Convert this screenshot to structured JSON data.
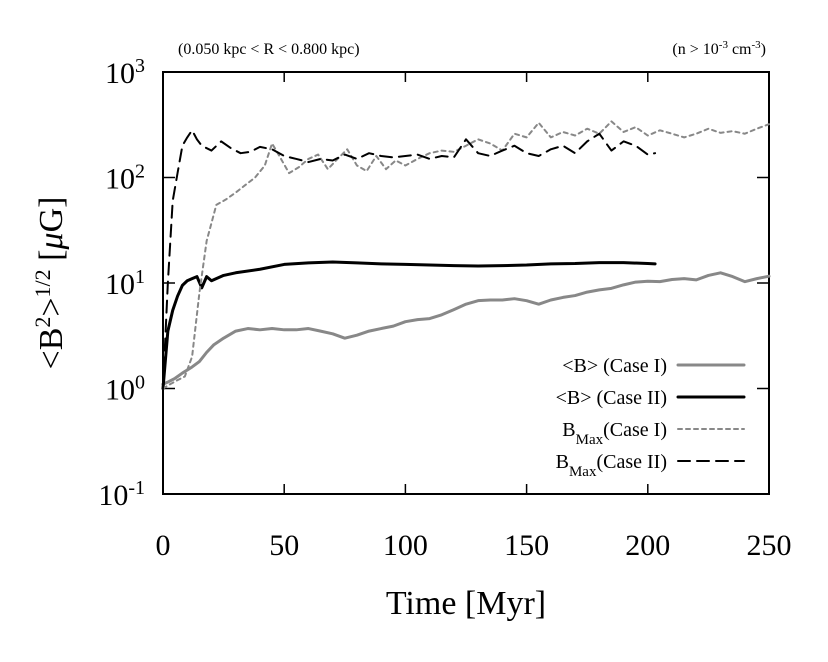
{
  "chart_data": {
    "type": "line",
    "title": "",
    "xlabel": "Time [Myr]",
    "ylabel": "<B²>^1/2 [μG]",
    "ylabel_parts": {
      "base": "<B",
      "sup1": "2",
      "mid": ">",
      "sup2": "1/2",
      "unit_open": " [",
      "unit_mu": "μ",
      "unit_rest": "G]"
    },
    "annotation_left": "(0.050 kpc < R < 0.800 kpc)",
    "annotation_right": {
      "base": "(n > 10",
      "sup": "-3",
      "mid": " cm",
      "sup2": "-3",
      "end": ")"
    },
    "xlim": [
      0,
      250
    ],
    "ylim": [
      0.1,
      1000
    ],
    "yscale": "log",
    "x_ticks": [
      0,
      50,
      100,
      150,
      200,
      250
    ],
    "x_tick_labels": [
      "0",
      "50",
      "100",
      "150",
      "200",
      "250"
    ],
    "y_ticks": [
      0.1,
      1,
      10,
      100,
      1000
    ],
    "y_tick_labels": [
      {
        "base": "10",
        "exp": "-1"
      },
      {
        "base": "10",
        "exp": "0"
      },
      {
        "base": "10",
        "exp": "1"
      },
      {
        "base": "10",
        "exp": "2"
      },
      {
        "base": "10",
        "exp": "3"
      }
    ],
    "legend_position": "lower-right",
    "series": [
      {
        "name": "<B> (Case I)",
        "legend": {
          "base": "<B> (Case I)"
        },
        "color": "#888888",
        "style": "solid",
        "width": 3,
        "x": [
          0,
          2,
          5,
          8,
          12,
          15,
          18,
          21,
          25,
          30,
          35,
          40,
          45,
          50,
          55,
          60,
          65,
          70,
          75,
          80,
          85,
          90,
          95,
          100,
          105,
          110,
          115,
          120,
          125,
          130,
          135,
          140,
          145,
          150,
          155,
          160,
          165,
          170,
          175,
          180,
          185,
          190,
          195,
          200,
          205,
          210,
          215,
          220,
          225,
          230,
          235,
          240,
          245,
          250
        ],
        "values": [
          1.1,
          1.15,
          1.25,
          1.4,
          1.6,
          1.8,
          2.2,
          2.6,
          3.0,
          3.5,
          3.7,
          3.6,
          3.7,
          3.6,
          3.6,
          3.7,
          3.5,
          3.3,
          3.0,
          3.2,
          3.5,
          3.7,
          3.9,
          4.3,
          4.5,
          4.6,
          5.0,
          5.6,
          6.3,
          6.8,
          6.9,
          6.9,
          7.1,
          6.8,
          6.3,
          6.9,
          7.3,
          7.6,
          8.2,
          8.6,
          8.9,
          9.6,
          10.2,
          10.4,
          10.3,
          10.8,
          11.0,
          10.7,
          11.8,
          12.5,
          11.5,
          10.3,
          11.0,
          11.6
        ]
      },
      {
        "name": "<B> (Case II)",
        "legend": {
          "base": "<B> (Case II)"
        },
        "color": "#000000",
        "style": "solid",
        "width": 3,
        "x": [
          0,
          2,
          4,
          6,
          8,
          10,
          12,
          14,
          16,
          18,
          20,
          25,
          30,
          40,
          50,
          60,
          70,
          80,
          90,
          100,
          110,
          120,
          130,
          140,
          150,
          160,
          170,
          180,
          190,
          200,
          203
        ],
        "values": [
          1.0,
          3.5,
          5.5,
          7.5,
          9.5,
          10.5,
          11.0,
          11.5,
          9.0,
          11.5,
          10.5,
          11.8,
          12.5,
          13.5,
          15.0,
          15.5,
          15.8,
          15.5,
          15.2,
          15.0,
          14.8,
          14.6,
          14.5,
          14.6,
          14.8,
          15.2,
          15.3,
          15.6,
          15.6,
          15.3,
          15.2
        ]
      },
      {
        "name": "BMax(Case I)",
        "legend": {
          "base": "B",
          "sub": "Max",
          "rest": "(Case I)"
        },
        "color": "#888888",
        "style": "dotted",
        "width": 2,
        "x": [
          0,
          3,
          6,
          9,
          12,
          15,
          18,
          22,
          26,
          30,
          34,
          38,
          42,
          45,
          48,
          52,
          56,
          60,
          64,
          68,
          72,
          76,
          80,
          84,
          88,
          92,
          96,
          100,
          105,
          110,
          115,
          120,
          125,
          130,
          135,
          140,
          145,
          150,
          155,
          160,
          165,
          170,
          175,
          180,
          185,
          190,
          195,
          200,
          205,
          210,
          215,
          220,
          225,
          230,
          235,
          240,
          245,
          250
        ],
        "values": [
          1.0,
          1.1,
          1.2,
          1.3,
          2.0,
          8.0,
          25.0,
          55.0,
          62.0,
          72.0,
          85.0,
          100.0,
          130.0,
          210.0,
          160.0,
          110.0,
          125.0,
          150.0,
          165.0,
          120.0,
          150.0,
          185.0,
          130.0,
          115.0,
          160.0,
          120.0,
          145.0,
          130.0,
          150.0,
          170.0,
          180.0,
          175.0,
          200.0,
          230.0,
          210.0,
          180.0,
          260.0,
          240.0,
          330.0,
          240.0,
          270.0,
          250.0,
          290.0,
          260.0,
          340.0,
          270.0,
          300.0,
          250.0,
          280.0,
          260.0,
          240.0,
          260.0,
          290.0,
          265.0,
          275.0,
          260.0,
          290.0,
          320.0
        ]
      },
      {
        "name": "BMax(Case II)",
        "legend": {
          "base": "B",
          "sub": "Max",
          "rest": "(Case II)"
        },
        "color": "#000000",
        "style": "dashed",
        "width": 2,
        "x": [
          0,
          2,
          4,
          6,
          8,
          10,
          12,
          14,
          16,
          20,
          24,
          28,
          32,
          36,
          40,
          45,
          50,
          55,
          60,
          65,
          70,
          75,
          80,
          85,
          90,
          95,
          100,
          105,
          110,
          115,
          120,
          125,
          130,
          135,
          140,
          145,
          150,
          155,
          160,
          165,
          170,
          175,
          180,
          185,
          190,
          195,
          200,
          203
        ],
        "values": [
          1.0,
          10.0,
          60.0,
          110.0,
          200.0,
          240.0,
          280.0,
          230.0,
          200.0,
          180.0,
          220.0,
          190.0,
          170.0,
          175.0,
          195.0,
          185.0,
          160.0,
          150.0,
          140.0,
          150.0,
          145.0,
          165.0,
          150.0,
          170.0,
          160.0,
          155.0,
          160.0,
          165.0,
          150.0,
          160.0,
          155.0,
          230.0,
          170.0,
          160.0,
          180.0,
          200.0,
          170.0,
          160.0,
          185.0,
          200.0,
          170.0,
          220.0,
          260.0,
          180.0,
          220.0,
          200.0,
          165.0,
          170.0
        ]
      }
    ]
  }
}
